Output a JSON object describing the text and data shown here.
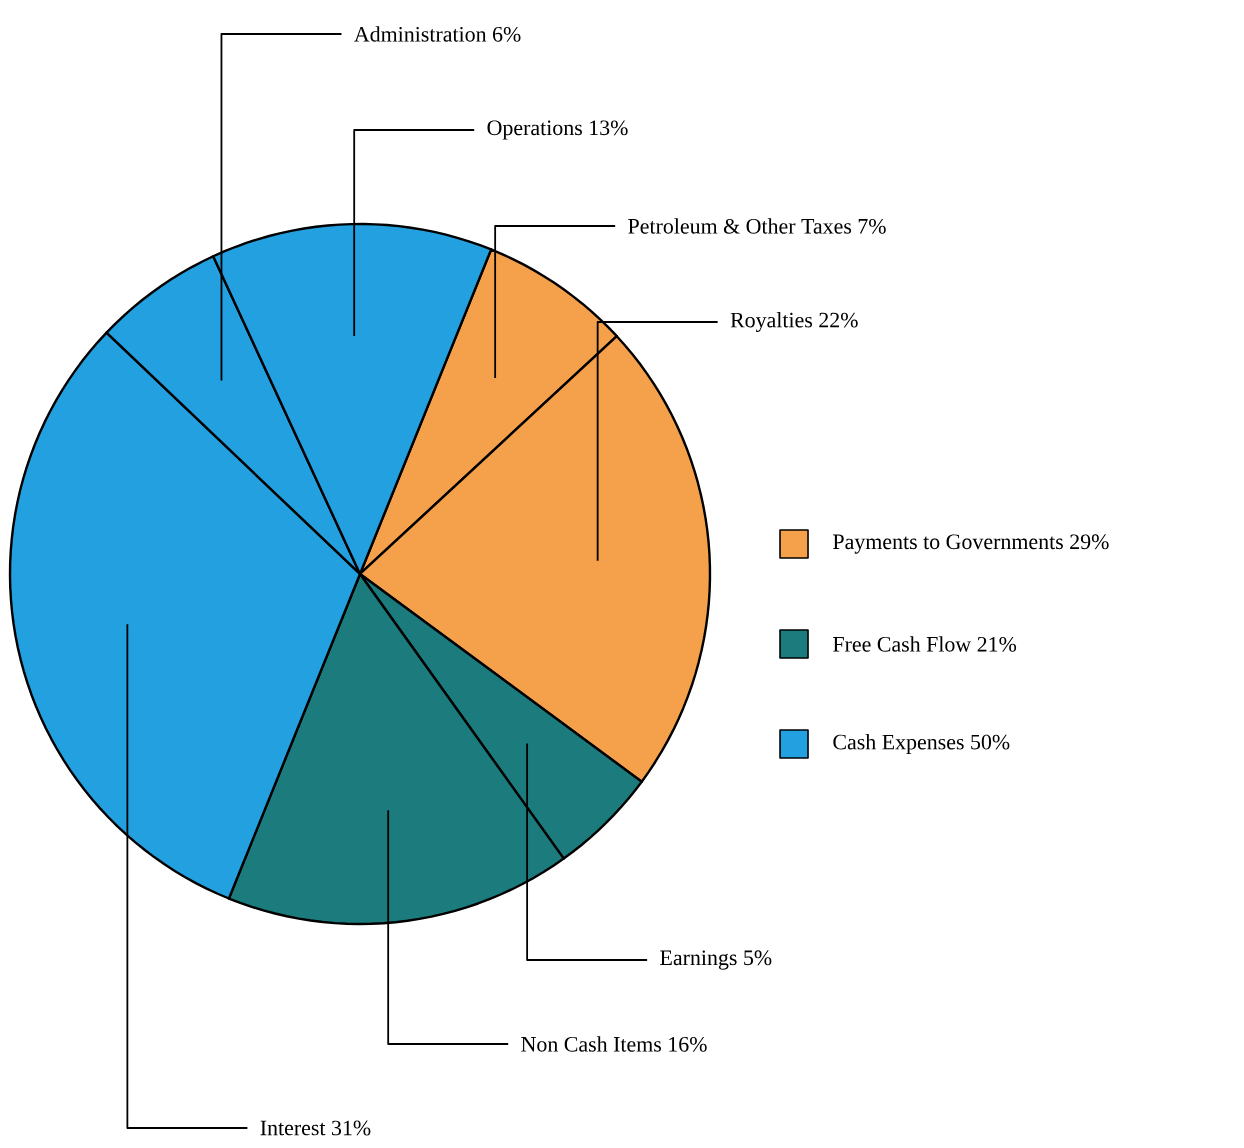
{
  "chart_data": [
    {
      "type": "pie",
      "categories": [
        "Petroleum & Other Taxes",
        "Royalties",
        "Earnings",
        "Non Cash Items",
        "Interest",
        "Administration",
        "Operations"
      ],
      "values": [
        7,
        22,
        5,
        16,
        31,
        6,
        13
      ],
      "value_labels": [
        "7%",
        "22%",
        "5%",
        "16%",
        "31%",
        "6%",
        "13%"
      ],
      "colors": [
        "#f5a04b",
        "#f5a04b",
        "#1b7b7d",
        "#1b7b7d",
        "#22a0e0",
        "#22a0e0",
        "#22a0e0"
      ]
    },
    {
      "type": "other",
      "categories": [
        "Payments to Governments 29%",
        "Free Cash Flow 21%",
        "Cash Expenses 50%"
      ],
      "colors": [
        "#f5a04b",
        "#1b7b7d",
        "#22a0e0"
      ]
    }
  ]
}
